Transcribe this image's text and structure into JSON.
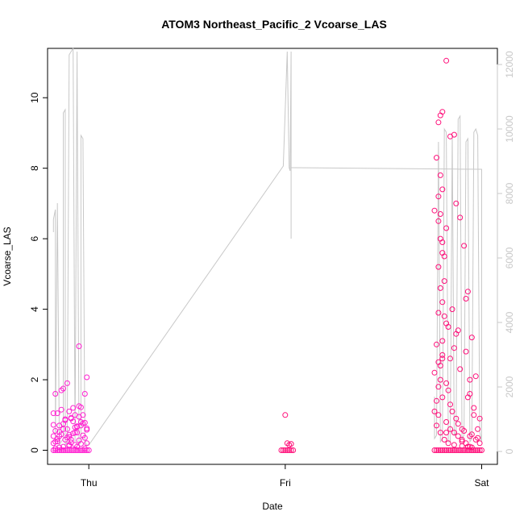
{
  "chart_data": {
    "type": "scatter",
    "title": "ATOM3 Northeast_Pacific_2 Vcoarse_LAS",
    "xlabel": "Date",
    "ylabel": "Vcoarse_LAS",
    "x_ticks": [
      {
        "label": "Thu",
        "value": 1.0
      },
      {
        "label": "Fri",
        "value": 2.0
      },
      {
        "label": "Sat",
        "value": 3.0
      }
    ],
    "xlim": [
      0.79,
      3.08
    ],
    "ylim": [
      -0.4,
      11.4
    ],
    "y_ticks": [
      0,
      2,
      4,
      6,
      8,
      10
    ],
    "y2lim": [
      -400,
      12500
    ],
    "y2_ticks": [
      0,
      2000,
      4000,
      6000,
      8000,
      10000,
      12000
    ],
    "grid": false,
    "colors": {
      "points_thu": "#ff1fd0",
      "points_sat": "#ff0f7a",
      "line": "#c8c8c8",
      "axis_right": "#c8c8c8"
    },
    "series": [
      {
        "marker": "open-circle",
        "color": "#ff1fd0",
        "x": [
          0.82,
          0.83,
          0.84,
          0.85,
          0.86,
          0.87,
          0.88,
          0.89,
          0.9,
          0.91,
          0.92,
          0.93,
          0.94,
          0.95,
          0.96,
          0.97,
          0.98,
          0.99,
          1.0,
          0.83,
          0.85,
          0.87,
          0.9,
          0.93,
          0.96,
          0.99,
          0.84,
          0.88,
          0.91,
          0.95,
          0.98,
          0.82,
          0.86,
          0.9,
          0.94,
          0.97,
          0.83,
          0.89,
          0.92,
          0.99,
          0.85,
          0.87,
          0.93,
          0.96,
          0.82,
          0.88,
          0.91,
          0.95,
          0.98,
          0.84,
          0.9,
          0.94,
          0.97,
          0.83,
          0.86,
          0.92,
          0.99,
          0.87,
          0.89,
          0.93,
          0.96,
          0.85,
          0.91,
          0.95,
          0.82,
          0.88,
          0.98,
          0.84,
          0.9,
          0.94,
          0.86,
          0.92,
          0.97,
          0.99,
          0.83,
          0.89,
          0.95,
          0.87,
          0.93,
          0.96,
          0.85,
          0.91,
          0.82,
          0.9,
          0.94,
          0.98
        ],
        "y": [
          0,
          0,
          0,
          0,
          0,
          0,
          0,
          0,
          0,
          0,
          0,
          0,
          0,
          0,
          0,
          0,
          0,
          0,
          0,
          0.05,
          0.08,
          0.1,
          0.12,
          0.15,
          0.18,
          0.2,
          0.25,
          0.3,
          0.22,
          0.28,
          0.35,
          0.4,
          0.45,
          0.38,
          0.5,
          0.42,
          0.55,
          0.6,
          0.48,
          0.62,
          0.7,
          0.75,
          0.65,
          0.8,
          0.72,
          0.85,
          0.9,
          0.95,
          0.78,
          1.05,
          1.1,
          0.68,
          1.0,
          1.6,
          1.7,
          1.2,
          0.58,
          1.75,
          1.9,
          1.0,
          1.22,
          0.52,
          0.92,
          1.25,
          1.05,
          0.88,
          1.6,
          0.32,
          0.44,
          0.66,
          1.15,
          0.82,
          0.76,
          2.07,
          0.24,
          0.36,
          2.95,
          0.6,
          0.5,
          0.7,
          0.4,
          0.3,
          0.2,
          0.15,
          0.1,
          0.05
        ]
      },
      {
        "marker": "open-circle",
        "color": "#ff0f7a",
        "x": [
          1.98,
          1.99,
          2.0,
          2.01,
          2.02,
          2.03,
          2.04,
          2.0,
          2.01,
          2.03,
          2.02
        ],
        "y": [
          0,
          0,
          0,
          0,
          0,
          0,
          0,
          1.0,
          0.2,
          0.18,
          0.15
        ]
      },
      {
        "marker": "open-circle",
        "color": "#ff0f7a",
        "x": [
          2.76,
          2.77,
          2.78,
          2.79,
          2.8,
          2.81,
          2.82,
          2.83,
          2.84,
          2.85,
          2.86,
          2.87,
          2.88,
          2.89,
          2.9,
          2.91,
          2.92,
          2.93,
          2.94,
          2.95,
          2.96,
          2.97,
          2.98,
          2.99,
          3.0,
          2.77,
          2.78,
          2.79,
          2.8,
          2.82,
          2.84,
          2.86,
          2.78,
          2.79,
          2.8,
          2.79,
          2.8,
          2.81,
          2.82,
          2.81,
          2.83,
          2.77,
          2.78,
          2.79,
          2.8,
          2.78,
          2.82,
          2.84,
          2.86,
          2.88,
          2.9,
          2.92,
          2.94,
          2.87,
          2.89,
          2.91,
          2.93,
          2.95,
          2.97,
          2.99,
          2.78,
          2.8,
          2.82,
          2.76,
          2.78,
          2.8,
          2.85,
          2.88,
          2.92,
          2.94,
          2.96,
          2.98,
          2.77,
          2.79,
          2.81,
          2.83,
          2.86,
          2.9,
          2.93,
          2.95,
          2.78,
          2.8,
          2.76,
          2.79,
          2.82,
          2.84,
          2.87,
          2.9,
          2.94,
          2.97,
          2.99,
          2.77,
          2.8,
          2.83,
          2.85,
          2.88,
          2.91,
          2.95,
          2.98,
          2.79,
          2.81,
          2.86,
          2.89,
          2.93,
          2.96,
          2.78,
          2.84,
          2.92,
          2.76,
          2.8,
          2.87,
          2.82,
          2.9,
          2.94,
          2.79
        ],
        "y": [
          0,
          0,
          0,
          0,
          0,
          0,
          0,
          0,
          0,
          0,
          0,
          0,
          0,
          0,
          0,
          0,
          0,
          0,
          0,
          0,
          0,
          0,
          0,
          0,
          0,
          8.3,
          7.2,
          9.5,
          9.6,
          11.05,
          8.9,
          8.95,
          6.5,
          6.7,
          7.4,
          6.0,
          5.9,
          5.5,
          6.3,
          4.8,
          3.5,
          3.0,
          2.5,
          2.0,
          1.5,
          1.0,
          0.8,
          0.6,
          0.5,
          0.4,
          0.3,
          0.2,
          0.1,
          7.0,
          6.6,
          5.8,
          4.5,
          3.2,
          2.1,
          0.9,
          5.2,
          4.2,
          3.6,
          2.2,
          1.8,
          2.6,
          4.0,
          3.4,
          2.8,
          1.6,
          1.2,
          0.6,
          0.7,
          0.5,
          0.3,
          0.2,
          0.15,
          0.12,
          0.1,
          0.08,
          3.9,
          3.1,
          1.1,
          2.4,
          1.9,
          1.3,
          0.9,
          0.6,
          0.4,
          0.3,
          0.2,
          1.4,
          2.7,
          1.7,
          1.1,
          0.75,
          0.55,
          0.45,
          0.35,
          4.6,
          3.8,
          2.9,
          2.3,
          1.5,
          1.0,
          9.3,
          2.6,
          4.3,
          6.8,
          5.6,
          3.3,
          0.5,
          0.25,
          2.0,
          7.8
        ]
      }
    ],
    "line_series": {
      "color": "#c8c8c8",
      "axis": "right",
      "x": [
        0.82,
        0.82,
        0.83,
        0.83,
        0.84,
        0.84,
        0.85,
        0.86,
        0.87,
        0.87,
        0.88,
        0.88,
        0.89,
        0.9,
        0.91,
        0.92,
        0.93,
        0.93,
        0.94,
        0.95,
        0.96,
        0.96,
        0.97,
        0.98,
        0.99,
        1.0,
        1.0,
        1.99,
        2.01,
        2.01,
        2.02,
        2.02,
        2.025,
        2.03,
        2.03,
        2.03,
        2.04,
        3.0,
        3.0,
        2.99,
        2.98,
        2.97,
        2.96,
        2.95,
        2.94,
        2.93,
        2.92,
        2.91,
        2.9,
        2.89,
        2.88,
        2.87,
        2.86,
        2.85,
        2.84,
        2.83,
        2.82,
        2.81,
        2.8,
        2.79,
        2.78,
        2.77,
        2.76,
        2.76
      ],
      "y": [
        6800,
        7200,
        7500,
        300,
        7600,
        7700,
        200,
        300,
        400,
        10500,
        10600,
        200,
        300,
        12300,
        12400,
        12500,
        300,
        500,
        12400,
        200,
        300,
        9800,
        9700,
        300,
        200,
        200,
        200,
        8850,
        12400,
        12400,
        8800,
        8800,
        8700,
        12400,
        6600,
        8800,
        8800,
        8750,
        300,
        600,
        9800,
        10000,
        9900,
        400,
        300,
        9700,
        9600,
        500,
        400,
        10400,
        10300,
        600,
        500,
        9800,
        300,
        300,
        9900,
        10000,
        400,
        300,
        9600,
        500,
        400,
        1700
      ]
    }
  }
}
